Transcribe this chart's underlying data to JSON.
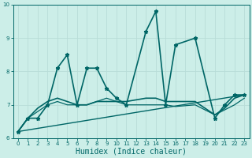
{
  "xlabel": "Humidex (Indice chaleur)",
  "ylabel": "",
  "background_color": "#cceee8",
  "grid_color": "#b8ddd8",
  "line_color": "#006666",
  "xlim": [
    -0.5,
    23.5
  ],
  "ylim": [
    6,
    10
  ],
  "yticks": [
    6,
    7,
    8,
    9,
    10
  ],
  "xticks": [
    0,
    1,
    2,
    3,
    4,
    5,
    6,
    7,
    8,
    9,
    10,
    11,
    12,
    13,
    14,
    15,
    16,
    17,
    18,
    19,
    20,
    21,
    22,
    23
  ],
  "series": [
    {
      "x": [
        0,
        1,
        2,
        3,
        4,
        5,
        6,
        7,
        8,
        9,
        10,
        11,
        13,
        14,
        15,
        16,
        18,
        20,
        21,
        22,
        23
      ],
      "y": [
        6.2,
        6.6,
        6.6,
        7.0,
        8.1,
        8.5,
        7.0,
        8.1,
        8.1,
        7.5,
        7.2,
        7.0,
        9.2,
        9.8,
        7.0,
        8.8,
        9.0,
        6.6,
        7.0,
        7.3,
        7.3
      ],
      "marker": "*",
      "lw": 1.2
    },
    {
      "x": [
        0,
        1,
        2,
        3,
        4,
        5,
        6,
        7,
        8,
        9,
        10,
        11,
        13,
        14,
        15,
        16,
        18,
        20,
        21,
        22,
        23
      ],
      "y": [
        6.2,
        6.6,
        6.9,
        7.1,
        7.2,
        7.1,
        7.0,
        7.0,
        7.1,
        7.1,
        7.1,
        7.1,
        7.2,
        7.2,
        7.1,
        7.1,
        7.1,
        6.7,
        6.9,
        7.2,
        7.3
      ],
      "marker": null,
      "lw": 1.2
    },
    {
      "x": [
        0,
        1,
        2,
        3,
        4,
        5,
        6,
        7,
        8,
        9,
        10,
        11,
        13,
        14,
        15,
        16,
        18,
        20,
        21,
        22,
        23
      ],
      "y": [
        6.2,
        6.6,
        6.8,
        7.0,
        7.1,
        7.0,
        7.0,
        7.0,
        7.1,
        7.2,
        7.1,
        7.0,
        7.0,
        7.0,
        7.0,
        6.95,
        7.0,
        6.7,
        6.85,
        7.0,
        7.2
      ],
      "marker": null,
      "lw": 0.9
    },
    {
      "x": [
        0,
        23
      ],
      "y": [
        6.2,
        7.3
      ],
      "marker": null,
      "lw": 1.0
    }
  ]
}
